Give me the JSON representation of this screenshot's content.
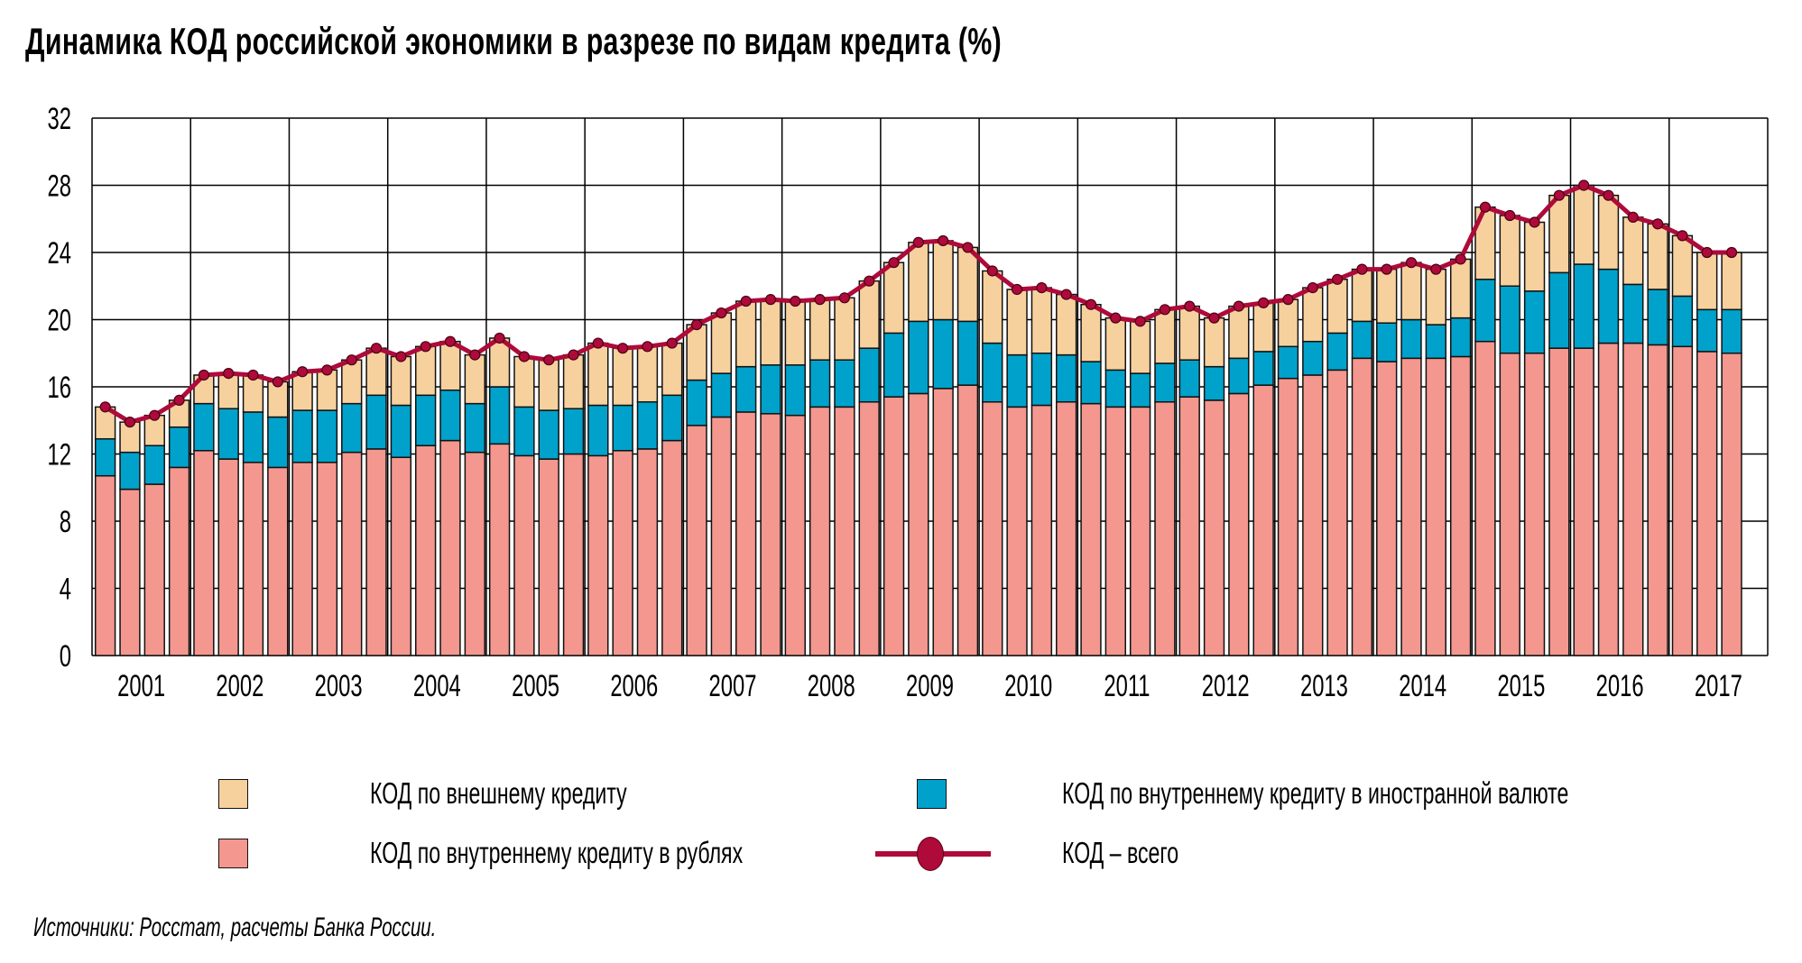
{
  "title": "Динамика КОД российской экономики в разрезе по видам кредита (%)",
  "source": "Источники: Росстат, расчеты Банка России.",
  "colors": {
    "external": "#f7d19d",
    "fx": "#00a2cb",
    "rubles": "#f4978e",
    "total": "#ae0a3a",
    "grid": "#000000"
  },
  "legend": [
    {
      "key": "external",
      "label": "КОД по внешнему кредиту"
    },
    {
      "key": "fx",
      "label": "КОД по внутреннему кредиту в иностранной валюте"
    },
    {
      "key": "rubles",
      "label": "КОД по внутреннему кредиту в рублях"
    },
    {
      "key": "total",
      "label": "КОД – всего"
    }
  ],
  "chart_data": {
    "type": "bar",
    "stacked": true,
    "title": "Динамика КОД российской экономики в разрезе по видам кредита (%)",
    "xlabel": "",
    "ylabel": "%",
    "ylim": [
      0,
      32
    ],
    "yticks": [
      0,
      4,
      8,
      12,
      16,
      20,
      24,
      28,
      32
    ],
    "grid": true,
    "legend_position": "bottom",
    "years": [
      "2001",
      "2002",
      "2003",
      "2004",
      "2005",
      "2006",
      "2007",
      "2008",
      "2009",
      "2010",
      "2011",
      "2012",
      "2013",
      "2014",
      "2015",
      "2016",
      "2017"
    ],
    "periods_per_year": 4,
    "categories": [
      "2001Q1",
      "2001Q2",
      "2001Q3",
      "2001Q4",
      "2002Q1",
      "2002Q2",
      "2002Q3",
      "2002Q4",
      "2003Q1",
      "2003Q2",
      "2003Q3",
      "2003Q4",
      "2004Q1",
      "2004Q2",
      "2004Q3",
      "2004Q4",
      "2005Q1",
      "2005Q2",
      "2005Q3",
      "2005Q4",
      "2006Q1",
      "2006Q2",
      "2006Q3",
      "2006Q4",
      "2007Q1",
      "2007Q2",
      "2007Q3",
      "2007Q4",
      "2008Q1",
      "2008Q2",
      "2008Q3",
      "2008Q4",
      "2009Q1",
      "2009Q2",
      "2009Q3",
      "2009Q4",
      "2010Q1",
      "2010Q2",
      "2010Q3",
      "2010Q4",
      "2011Q1",
      "2011Q2",
      "2011Q3",
      "2011Q4",
      "2012Q1",
      "2012Q2",
      "2012Q3",
      "2012Q4",
      "2013Q1",
      "2013Q2",
      "2013Q3",
      "2013Q4",
      "2014Q1",
      "2014Q2",
      "2014Q3",
      "2014Q4",
      "2015Q1",
      "2015Q2",
      "2015Q3",
      "2015Q4",
      "2016Q1",
      "2016Q2",
      "2016Q3",
      "2016Q4",
      "2017Q1",
      "2017Q2",
      "2017Q3"
    ],
    "series": [
      {
        "key": "rubles",
        "name": "КОД по внутреннему кредиту в рублях",
        "kind": "bar",
        "values": [
          10.7,
          9.9,
          10.2,
          11.2,
          12.2,
          11.7,
          11.5,
          11.2,
          11.5,
          11.5,
          12.1,
          12.3,
          11.8,
          12.5,
          12.8,
          12.1,
          12.6,
          11.9,
          11.7,
          12.0,
          11.9,
          12.2,
          12.3,
          12.8,
          13.7,
          14.2,
          14.5,
          14.4,
          14.3,
          14.8,
          14.8,
          15.1,
          15.4,
          15.6,
          15.9,
          16.1,
          15.1,
          14.8,
          14.9,
          15.1,
          15.0,
          14.8,
          14.8,
          15.1,
          15.4,
          15.2,
          15.6,
          16.1,
          16.5,
          16.7,
          17.0,
          17.7,
          17.5,
          17.7,
          17.7,
          17.8,
          18.7,
          18.0,
          18.0,
          18.3,
          18.3,
          18.6,
          18.6,
          18.5,
          18.4,
          18.1,
          18.0
        ]
      },
      {
        "key": "fx",
        "name": "КОД по внутреннему кредиту в иностранной валюте",
        "kind": "bar",
        "values": [
          2.2,
          2.2,
          2.3,
          2.4,
          2.8,
          3.0,
          3.0,
          3.0,
          3.1,
          3.1,
          2.9,
          3.2,
          3.1,
          3.0,
          3.0,
          2.9,
          3.4,
          2.9,
          2.9,
          2.7,
          3.0,
          2.7,
          2.8,
          2.7,
          2.7,
          2.6,
          2.7,
          2.9,
          3.0,
          2.8,
          2.8,
          3.2,
          3.8,
          4.3,
          4.1,
          3.8,
          3.5,
          3.1,
          3.1,
          2.8,
          2.5,
          2.2,
          2.0,
          2.3,
          2.2,
          2.0,
          2.1,
          2.0,
          1.9,
          2.0,
          2.2,
          2.2,
          2.3,
          2.3,
          2.0,
          2.3,
          3.7,
          4.0,
          3.7,
          4.5,
          5.0,
          4.4,
          3.5,
          3.3,
          3.0,
          2.5,
          2.6
        ]
      },
      {
        "key": "external",
        "name": "КОД по внешнему кредиту",
        "kind": "bar",
        "values": [
          1.9,
          1.8,
          1.8,
          1.6,
          1.7,
          2.1,
          2.2,
          2.1,
          2.3,
          2.4,
          2.6,
          2.8,
          2.9,
          2.9,
          2.9,
          2.9,
          2.9,
          3.0,
          3.0,
          3.2,
          3.7,
          3.4,
          3.3,
          3.1,
          3.3,
          3.6,
          3.9,
          3.9,
          3.8,
          3.6,
          3.7,
          4.0,
          4.2,
          4.7,
          4.7,
          4.4,
          4.3,
          3.9,
          3.9,
          3.6,
          3.4,
          3.1,
          3.1,
          3.2,
          3.2,
          2.9,
          3.1,
          2.9,
          2.8,
          3.2,
          3.2,
          3.1,
          3.2,
          3.4,
          3.3,
          3.5,
          4.3,
          4.2,
          4.1,
          4.6,
          4.7,
          4.4,
          4.0,
          3.9,
          3.6,
          3.4,
          3.4
        ]
      },
      {
        "key": "total",
        "name": "КОД – всего",
        "kind": "line",
        "values": [
          14.8,
          13.9,
          14.3,
          15.2,
          16.7,
          16.8,
          16.7,
          16.3,
          16.9,
          17.0,
          17.6,
          18.3,
          17.8,
          18.4,
          18.7,
          17.9,
          18.9,
          17.8,
          17.6,
          17.9,
          18.6,
          18.3,
          18.4,
          18.6,
          19.7,
          20.4,
          21.1,
          21.2,
          21.1,
          21.2,
          21.3,
          22.3,
          23.4,
          24.6,
          24.7,
          24.3,
          22.9,
          21.8,
          21.9,
          21.5,
          20.9,
          20.1,
          19.9,
          20.6,
          20.8,
          20.1,
          20.8,
          21.0,
          21.2,
          21.9,
          22.4,
          23.0,
          23.0,
          23.4,
          23.0,
          23.6,
          26.7,
          26.2,
          25.8,
          27.4,
          28.0,
          27.4,
          26.1,
          25.7,
          25.0,
          24.0,
          24.0
        ]
      }
    ]
  }
}
